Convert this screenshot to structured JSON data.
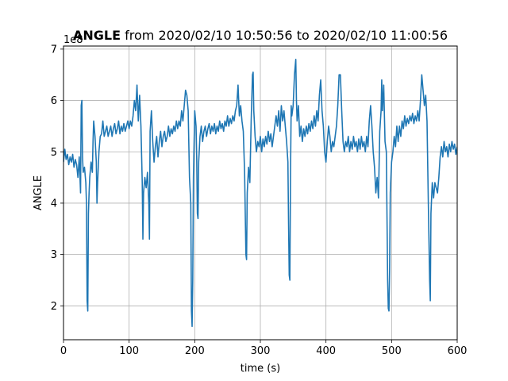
{
  "chart_data": {
    "type": "line",
    "title_bold": "ANGLE",
    "title_rest": " from 2020/02/10 10:50:56 to 2020/02/10 11:00:56",
    "xlabel": "time (s)",
    "ylabel": "ANGLE",
    "offset_label": "1e8",
    "xlim": [
      0,
      600
    ],
    "ylim": [
      1.34,
      7.06
    ],
    "xticks": [
      "0",
      "100",
      "200",
      "300",
      "400",
      "500",
      "600"
    ],
    "yticks": [
      "2",
      "3",
      "4",
      "5",
      "6",
      "7"
    ],
    "grid": true,
    "series": [
      {
        "color": "#1f77b4",
        "points": [
          [
            0,
            4.8
          ],
          [
            2,
            5.05
          ],
          [
            4,
            4.85
          ],
          [
            6,
            4.95
          ],
          [
            8,
            4.75
          ],
          [
            10,
            4.9
          ],
          [
            12,
            4.8
          ],
          [
            14,
            4.95
          ],
          [
            16,
            4.7
          ],
          [
            18,
            4.85
          ],
          [
            20,
            4.75
          ],
          [
            22,
            4.5
          ],
          [
            24,
            4.9
          ],
          [
            26,
            4.2
          ],
          [
            27,
            5.9
          ],
          [
            28,
            6.0
          ],
          [
            29,
            4.9
          ],
          [
            30,
            4.6
          ],
          [
            32,
            4.7
          ],
          [
            34,
            4.4
          ],
          [
            35,
            4.0
          ],
          [
            36,
            2.1
          ],
          [
            37,
            1.9
          ],
          [
            38,
            3.8
          ],
          [
            39,
            4.2
          ],
          [
            40,
            4.5
          ],
          [
            42,
            4.8
          ],
          [
            44,
            4.6
          ],
          [
            45,
            5.2
          ],
          [
            46,
            5.6
          ],
          [
            48,
            5.3
          ],
          [
            50,
            4.8
          ],
          [
            51,
            4.0
          ],
          [
            52,
            4.4
          ],
          [
            54,
            5.0
          ],
          [
            56,
            5.3
          ],
          [
            58,
            5.35
          ],
          [
            60,
            5.6
          ],
          [
            62,
            5.3
          ],
          [
            64,
            5.4
          ],
          [
            66,
            5.5
          ],
          [
            68,
            5.3
          ],
          [
            70,
            5.4
          ],
          [
            72,
            5.5
          ],
          [
            74,
            5.3
          ],
          [
            76,
            5.45
          ],
          [
            78,
            5.55
          ],
          [
            80,
            5.35
          ],
          [
            82,
            5.45
          ],
          [
            84,
            5.6
          ],
          [
            86,
            5.35
          ],
          [
            88,
            5.5
          ],
          [
            90,
            5.4
          ],
          [
            92,
            5.55
          ],
          [
            94,
            5.4
          ],
          [
            96,
            5.5
          ],
          [
            98,
            5.6
          ],
          [
            100,
            5.45
          ],
          [
            102,
            5.6
          ],
          [
            104,
            5.5
          ],
          [
            106,
            5.7
          ],
          [
            108,
            6.0
          ],
          [
            110,
            5.8
          ],
          [
            112,
            6.3
          ],
          [
            114,
            5.6
          ],
          [
            116,
            6.1
          ],
          [
            118,
            5.5
          ],
          [
            120,
            4.4
          ],
          [
            121,
            3.3
          ],
          [
            122,
            4.2
          ],
          [
            124,
            4.5
          ],
          [
            126,
            4.3
          ],
          [
            128,
            4.6
          ],
          [
            130,
            4.0
          ],
          [
            131,
            3.3
          ],
          [
            132,
            5.4
          ],
          [
            134,
            5.8
          ],
          [
            136,
            5.2
          ],
          [
            138,
            4.8
          ],
          [
            140,
            5.1
          ],
          [
            142,
            5.3
          ],
          [
            144,
            4.9
          ],
          [
            146,
            5.2
          ],
          [
            148,
            5.4
          ],
          [
            150,
            5.1
          ],
          [
            152,
            5.3
          ],
          [
            154,
            5.4
          ],
          [
            156,
            5.2
          ],
          [
            158,
            5.3
          ],
          [
            160,
            5.5
          ],
          [
            162,
            5.3
          ],
          [
            164,
            5.45
          ],
          [
            166,
            5.35
          ],
          [
            168,
            5.5
          ],
          [
            170,
            5.4
          ],
          [
            172,
            5.6
          ],
          [
            174,
            5.45
          ],
          [
            176,
            5.6
          ],
          [
            178,
            5.5
          ],
          [
            180,
            5.8
          ],
          [
            182,
            5.6
          ],
          [
            184,
            5.9
          ],
          [
            186,
            6.2
          ],
          [
            188,
            6.1
          ],
          [
            190,
            5.8
          ],
          [
            192,
            4.5
          ],
          [
            194,
            4.0
          ],
          [
            195,
            1.9
          ],
          [
            196,
            1.6
          ],
          [
            197,
            2.5
          ],
          [
            198,
            4.5
          ],
          [
            200,
            5.8
          ],
          [
            202,
            5.5
          ],
          [
            203,
            4.9
          ],
          [
            204,
            3.8
          ],
          [
            205,
            3.7
          ],
          [
            206,
            4.8
          ],
          [
            208,
            5.3
          ],
          [
            210,
            5.5
          ],
          [
            212,
            5.2
          ],
          [
            214,
            5.4
          ],
          [
            216,
            5.5
          ],
          [
            218,
            5.3
          ],
          [
            220,
            5.45
          ],
          [
            222,
            5.55
          ],
          [
            224,
            5.35
          ],
          [
            226,
            5.5
          ],
          [
            228,
            5.4
          ],
          [
            230,
            5.55
          ],
          [
            232,
            5.35
          ],
          [
            234,
            5.5
          ],
          [
            236,
            5.4
          ],
          [
            238,
            5.6
          ],
          [
            240,
            5.45
          ],
          [
            242,
            5.55
          ],
          [
            244,
            5.4
          ],
          [
            246,
            5.6
          ],
          [
            248,
            5.5
          ],
          [
            250,
            5.7
          ],
          [
            252,
            5.5
          ],
          [
            254,
            5.65
          ],
          [
            256,
            5.55
          ],
          [
            258,
            5.7
          ],
          [
            260,
            5.6
          ],
          [
            262,
            5.8
          ],
          [
            264,
            5.9
          ],
          [
            266,
            6.3
          ],
          [
            268,
            5.7
          ],
          [
            270,
            5.9
          ],
          [
            272,
            5.6
          ],
          [
            274,
            5.4
          ],
          [
            276,
            4.6
          ],
          [
            278,
            3.0
          ],
          [
            279,
            2.9
          ],
          [
            280,
            4.2
          ],
          [
            282,
            4.7
          ],
          [
            284,
            4.4
          ],
          [
            286,
            5.6
          ],
          [
            288,
            6.5
          ],
          [
            289,
            6.55
          ],
          [
            290,
            5.8
          ],
          [
            292,
            5.3
          ],
          [
            294,
            5.0
          ],
          [
            296,
            5.2
          ],
          [
            298,
            5.1
          ],
          [
            300,
            5.3
          ],
          [
            302,
            5.0
          ],
          [
            304,
            5.25
          ],
          [
            306,
            5.1
          ],
          [
            308,
            5.3
          ],
          [
            310,
            5.15
          ],
          [
            312,
            5.4
          ],
          [
            314,
            5.2
          ],
          [
            316,
            5.35
          ],
          [
            318,
            5.1
          ],
          [
            320,
            5.3
          ],
          [
            322,
            5.5
          ],
          [
            324,
            5.7
          ],
          [
            326,
            5.5
          ],
          [
            328,
            5.8
          ],
          [
            330,
            5.4
          ],
          [
            332,
            5.9
          ],
          [
            334,
            5.6
          ],
          [
            336,
            5.8
          ],
          [
            338,
            5.5
          ],
          [
            340,
            5.2
          ],
          [
            342,
            4.8
          ],
          [
            343,
            3.6
          ],
          [
            344,
            2.6
          ],
          [
            345,
            2.5
          ],
          [
            346,
            4.6
          ],
          [
            347,
            5.9
          ],
          [
            348,
            5.7
          ],
          [
            350,
            5.9
          ],
          [
            352,
            6.5
          ],
          [
            354,
            6.8
          ],
          [
            355,
            6.0
          ],
          [
            356,
            5.6
          ],
          [
            358,
            5.9
          ],
          [
            360,
            5.3
          ],
          [
            362,
            5.5
          ],
          [
            364,
            5.2
          ],
          [
            366,
            5.45
          ],
          [
            368,
            5.3
          ],
          [
            370,
            5.5
          ],
          [
            372,
            5.35
          ],
          [
            374,
            5.55
          ],
          [
            376,
            5.4
          ],
          [
            378,
            5.6
          ],
          [
            380,
            5.45
          ],
          [
            382,
            5.7
          ],
          [
            384,
            5.5
          ],
          [
            386,
            5.8
          ],
          [
            388,
            5.6
          ],
          [
            390,
            6.1
          ],
          [
            392,
            6.4
          ],
          [
            394,
            5.8
          ],
          [
            396,
            5.5
          ],
          [
            398,
            5.0
          ],
          [
            400,
            4.8
          ],
          [
            402,
            5.2
          ],
          [
            404,
            5.5
          ],
          [
            406,
            5.3
          ],
          [
            408,
            5.0
          ],
          [
            410,
            5.2
          ],
          [
            412,
            5.1
          ],
          [
            414,
            5.3
          ],
          [
            416,
            5.5
          ],
          [
            418,
            5.9
          ],
          [
            420,
            6.5
          ],
          [
            422,
            6.5
          ],
          [
            424,
            5.8
          ],
          [
            426,
            5.2
          ],
          [
            428,
            5.0
          ],
          [
            430,
            5.2
          ],
          [
            432,
            5.1
          ],
          [
            434,
            5.3
          ],
          [
            436,
            5.0
          ],
          [
            438,
            5.2
          ],
          [
            440,
            5.05
          ],
          [
            442,
            5.3
          ],
          [
            444,
            5.1
          ],
          [
            446,
            5.2
          ],
          [
            448,
            5.0
          ],
          [
            450,
            5.25
          ],
          [
            452,
            5.05
          ],
          [
            454,
            5.3
          ],
          [
            456,
            5.1
          ],
          [
            458,
            5.2
          ],
          [
            460,
            5.0
          ],
          [
            462,
            5.3
          ],
          [
            464,
            5.1
          ],
          [
            466,
            5.6
          ],
          [
            468,
            5.9
          ],
          [
            470,
            5.5
          ],
          [
            472,
            5.0
          ],
          [
            474,
            4.7
          ],
          [
            476,
            4.2
          ],
          [
            478,
            4.5
          ],
          [
            480,
            4.1
          ],
          [
            482,
            5.4
          ],
          [
            484,
            5.8
          ],
          [
            485,
            6.4
          ],
          [
            486,
            5.8
          ],
          [
            488,
            6.3
          ],
          [
            490,
            5.2
          ],
          [
            492,
            5.0
          ],
          [
            494,
            2.5
          ],
          [
            495,
            1.95
          ],
          [
            496,
            1.9
          ],
          [
            497,
            2.7
          ],
          [
            498,
            4.2
          ],
          [
            500,
            4.8
          ],
          [
            502,
            5.0
          ],
          [
            504,
            5.3
          ],
          [
            506,
            5.1
          ],
          [
            508,
            5.5
          ],
          [
            510,
            5.2
          ],
          [
            512,
            5.5
          ],
          [
            514,
            5.3
          ],
          [
            516,
            5.6
          ],
          [
            518,
            5.45
          ],
          [
            520,
            5.7
          ],
          [
            522,
            5.5
          ],
          [
            524,
            5.65
          ],
          [
            526,
            5.55
          ],
          [
            528,
            5.7
          ],
          [
            530,
            5.6
          ],
          [
            532,
            5.75
          ],
          [
            534,
            5.55
          ],
          [
            536,
            5.7
          ],
          [
            538,
            5.6
          ],
          [
            540,
            5.8
          ],
          [
            542,
            5.6
          ],
          [
            544,
            6.0
          ],
          [
            546,
            6.5
          ],
          [
            548,
            6.2
          ],
          [
            550,
            5.9
          ],
          [
            552,
            6.1
          ],
          [
            554,
            5.6
          ],
          [
            556,
            4.0
          ],
          [
            558,
            2.5
          ],
          [
            559,
            2.1
          ],
          [
            560,
            3.8
          ],
          [
            562,
            4.4
          ],
          [
            564,
            4.1
          ],
          [
            566,
            4.4
          ],
          [
            568,
            4.3
          ],
          [
            570,
            4.2
          ],
          [
            572,
            4.5
          ],
          [
            574,
            4.9
          ],
          [
            576,
            5.1
          ],
          [
            578,
            4.9
          ],
          [
            580,
            5.2
          ],
          [
            582,
            5.0
          ],
          [
            584,
            5.1
          ],
          [
            586,
            4.9
          ],
          [
            588,
            5.15
          ],
          [
            590,
            5.0
          ],
          [
            592,
            5.2
          ],
          [
            594,
            5.05
          ],
          [
            596,
            5.15
          ],
          [
            598,
            4.95
          ],
          [
            600,
            5.1
          ]
        ]
      }
    ]
  }
}
